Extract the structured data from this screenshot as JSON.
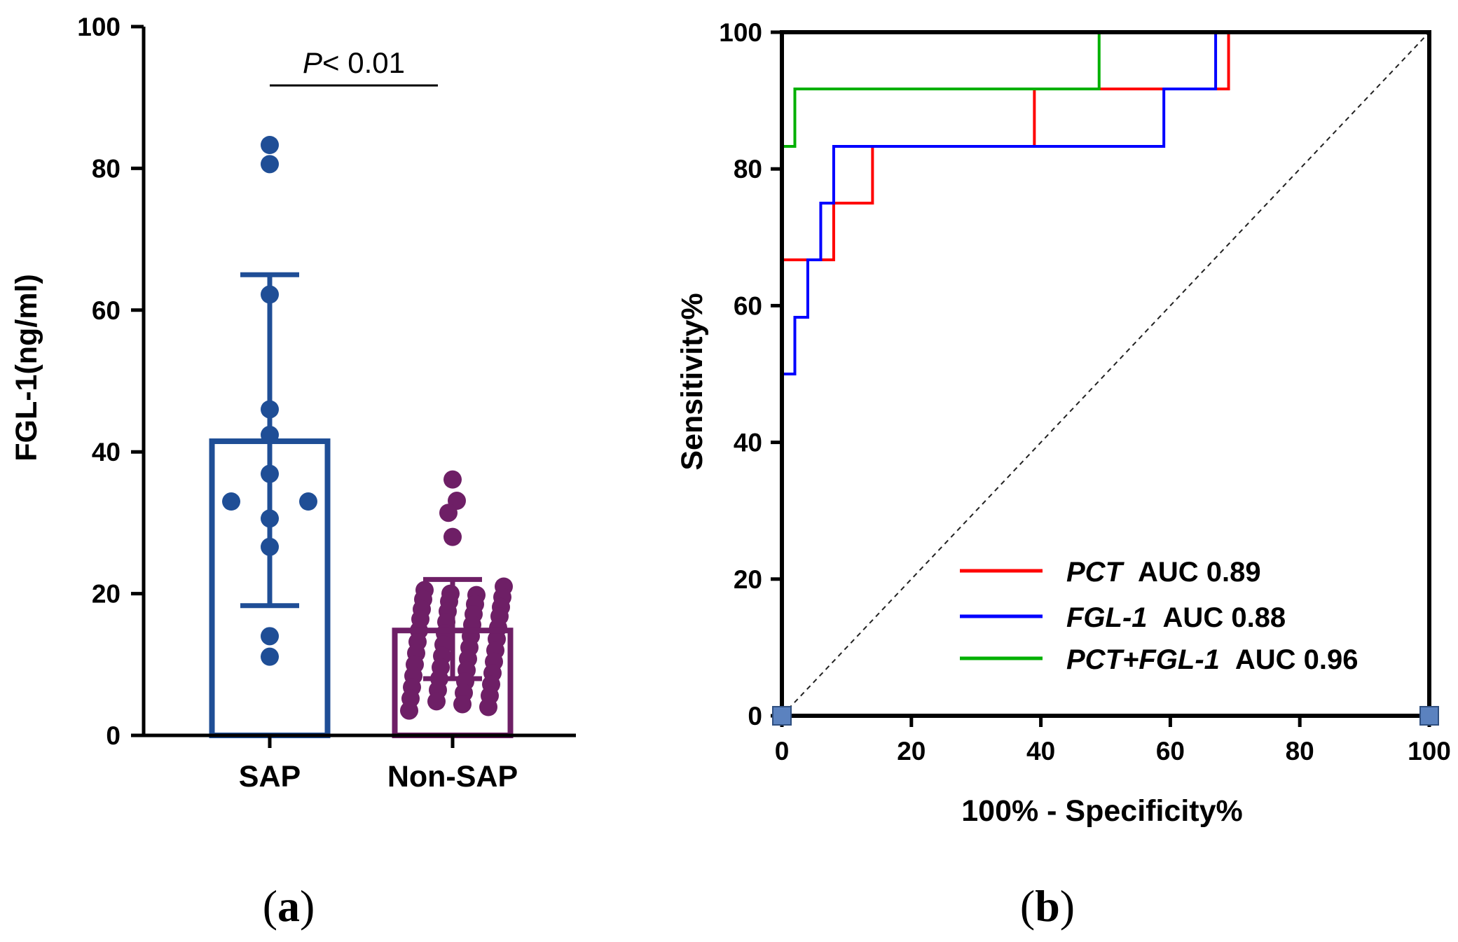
{
  "colors": {
    "sap": "#1F4E96",
    "nonsap": "#6E1F66",
    "pct": "#FF0000",
    "fgl": "#0000FF",
    "combo": "#00B000",
    "endpoint": "#5B82BF"
  },
  "chart_data": [
    {
      "panel": "a",
      "panel_label_left": "(",
      "panel_label_letter": "a",
      "panel_label_right": ")",
      "type": "bar",
      "title": "",
      "xlabel": "",
      "ylabel": "FGL-1(ng/ml)",
      "ylim": [
        0,
        100
      ],
      "yticks": [
        "0",
        "20",
        "40",
        "60",
        "80",
        "100"
      ],
      "categories": [
        "SAP",
        "Non-SAP"
      ],
      "means": [
        41.5,
        14.8
      ],
      "error_upper": [
        65.0,
        22.0
      ],
      "error_lower": [
        18.3,
        8.0
      ],
      "points": [
        [
          83.3,
          80.6,
          62.2,
          46.0,
          42.4,
          36.9,
          33.0,
          33.0,
          30.6,
          26.6,
          14.0,
          11.1
        ],
        [
          36.1,
          33.1,
          31.4,
          28.0,
          21.0,
          20.5,
          20.0,
          19.8,
          19.5,
          19.2,
          18.9,
          18.5,
          18.1,
          17.8,
          17.5,
          17.1,
          16.8,
          16.4,
          16.0,
          15.6,
          15.2,
          14.8,
          14.4,
          14.0,
          13.6,
          13.2,
          12.8,
          12.4,
          12.0,
          11.6,
          11.2,
          10.8,
          10.4,
          10.0,
          9.6,
          9.2,
          8.8,
          8.4,
          8.0,
          7.6,
          7.2,
          6.8,
          6.4,
          6.0,
          5.6,
          5.2,
          4.8,
          4.4,
          4.0,
          3.5
        ]
      ],
      "annotation_prefix": "P",
      "annotation_suffix": "< 0.01"
    },
    {
      "panel": "b",
      "panel_label_left": "(",
      "panel_label_letter": "b",
      "panel_label_right": ")",
      "type": "line",
      "title": "",
      "xlabel": "100% - Specificity%",
      "ylabel": "Sensitivity%",
      "xlim": [
        0,
        100
      ],
      "ylim": [
        0,
        100
      ],
      "xticks": [
        "0",
        "20",
        "40",
        "60",
        "80",
        "100"
      ],
      "yticks": [
        "0",
        "20",
        "40",
        "60",
        "80",
        "100"
      ],
      "reference_line": [
        [
          0,
          0
        ],
        [
          100,
          100
        ]
      ],
      "legend_position": "bottom-right",
      "series": [
        {
          "name": "PCT",
          "auc_label": "AUC 0.89",
          "color_key": "pct",
          "x": [
            0,
            0,
            2,
            6,
            8,
            8,
            14,
            14,
            39,
            39,
            67,
            69,
            69,
            100
          ],
          "y": [
            0,
            66.7,
            66.7,
            66.7,
            66.7,
            75,
            75,
            83.3,
            83.3,
            91.7,
            91.7,
            91.7,
            100,
            100
          ]
        },
        {
          "name": "FGL-1",
          "auc_label": "AUC 0.88",
          "color_key": "fgl",
          "x": [
            0,
            0,
            2,
            2,
            4,
            4,
            6,
            6,
            8,
            8,
            59,
            59,
            67,
            67,
            100
          ],
          "y": [
            0,
            50,
            50,
            58.3,
            58.3,
            66.7,
            66.7,
            75,
            75,
            83.3,
            83.3,
            91.7,
            91.7,
            100,
            100
          ]
        },
        {
          "name": "PCT+FGL-1",
          "auc_label": "AUC 0.96",
          "color_key": "combo",
          "x": [
            0,
            0,
            0,
            2,
            2,
            49,
            49,
            100
          ],
          "y": [
            0,
            66.7,
            83.3,
            83.3,
            91.7,
            91.7,
            100,
            100
          ]
        }
      ],
      "endpoints": [
        [
          0,
          0
        ],
        [
          100,
          0
        ]
      ]
    }
  ]
}
